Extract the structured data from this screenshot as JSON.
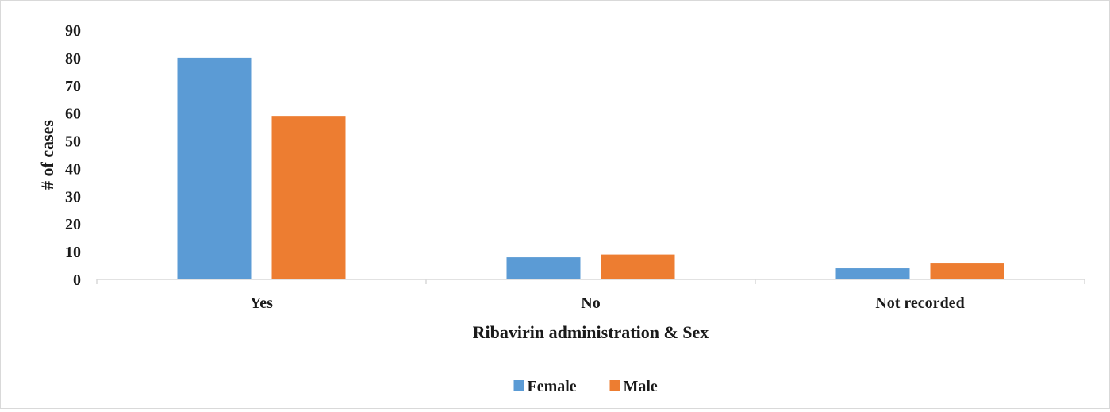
{
  "chart_data": {
    "type": "bar",
    "categories": [
      "Yes",
      "No",
      "Not recorded"
    ],
    "series": [
      {
        "name": "Female",
        "values": [
          80,
          8,
          4
        ],
        "color": "#5b9bd5"
      },
      {
        "name": "Male",
        "values": [
          59,
          9,
          6
        ],
        "color": "#ed7d31"
      }
    ],
    "title": "",
    "xlabel": "Ribavirin administration & Sex",
    "ylabel": "# of cases",
    "ylim": [
      0,
      90
    ],
    "yticks": [
      "0",
      "10",
      "20",
      "30",
      "40",
      "50",
      "60",
      "70",
      "80",
      "90"
    ],
    "grid": false,
    "legend_position": "bottom"
  }
}
